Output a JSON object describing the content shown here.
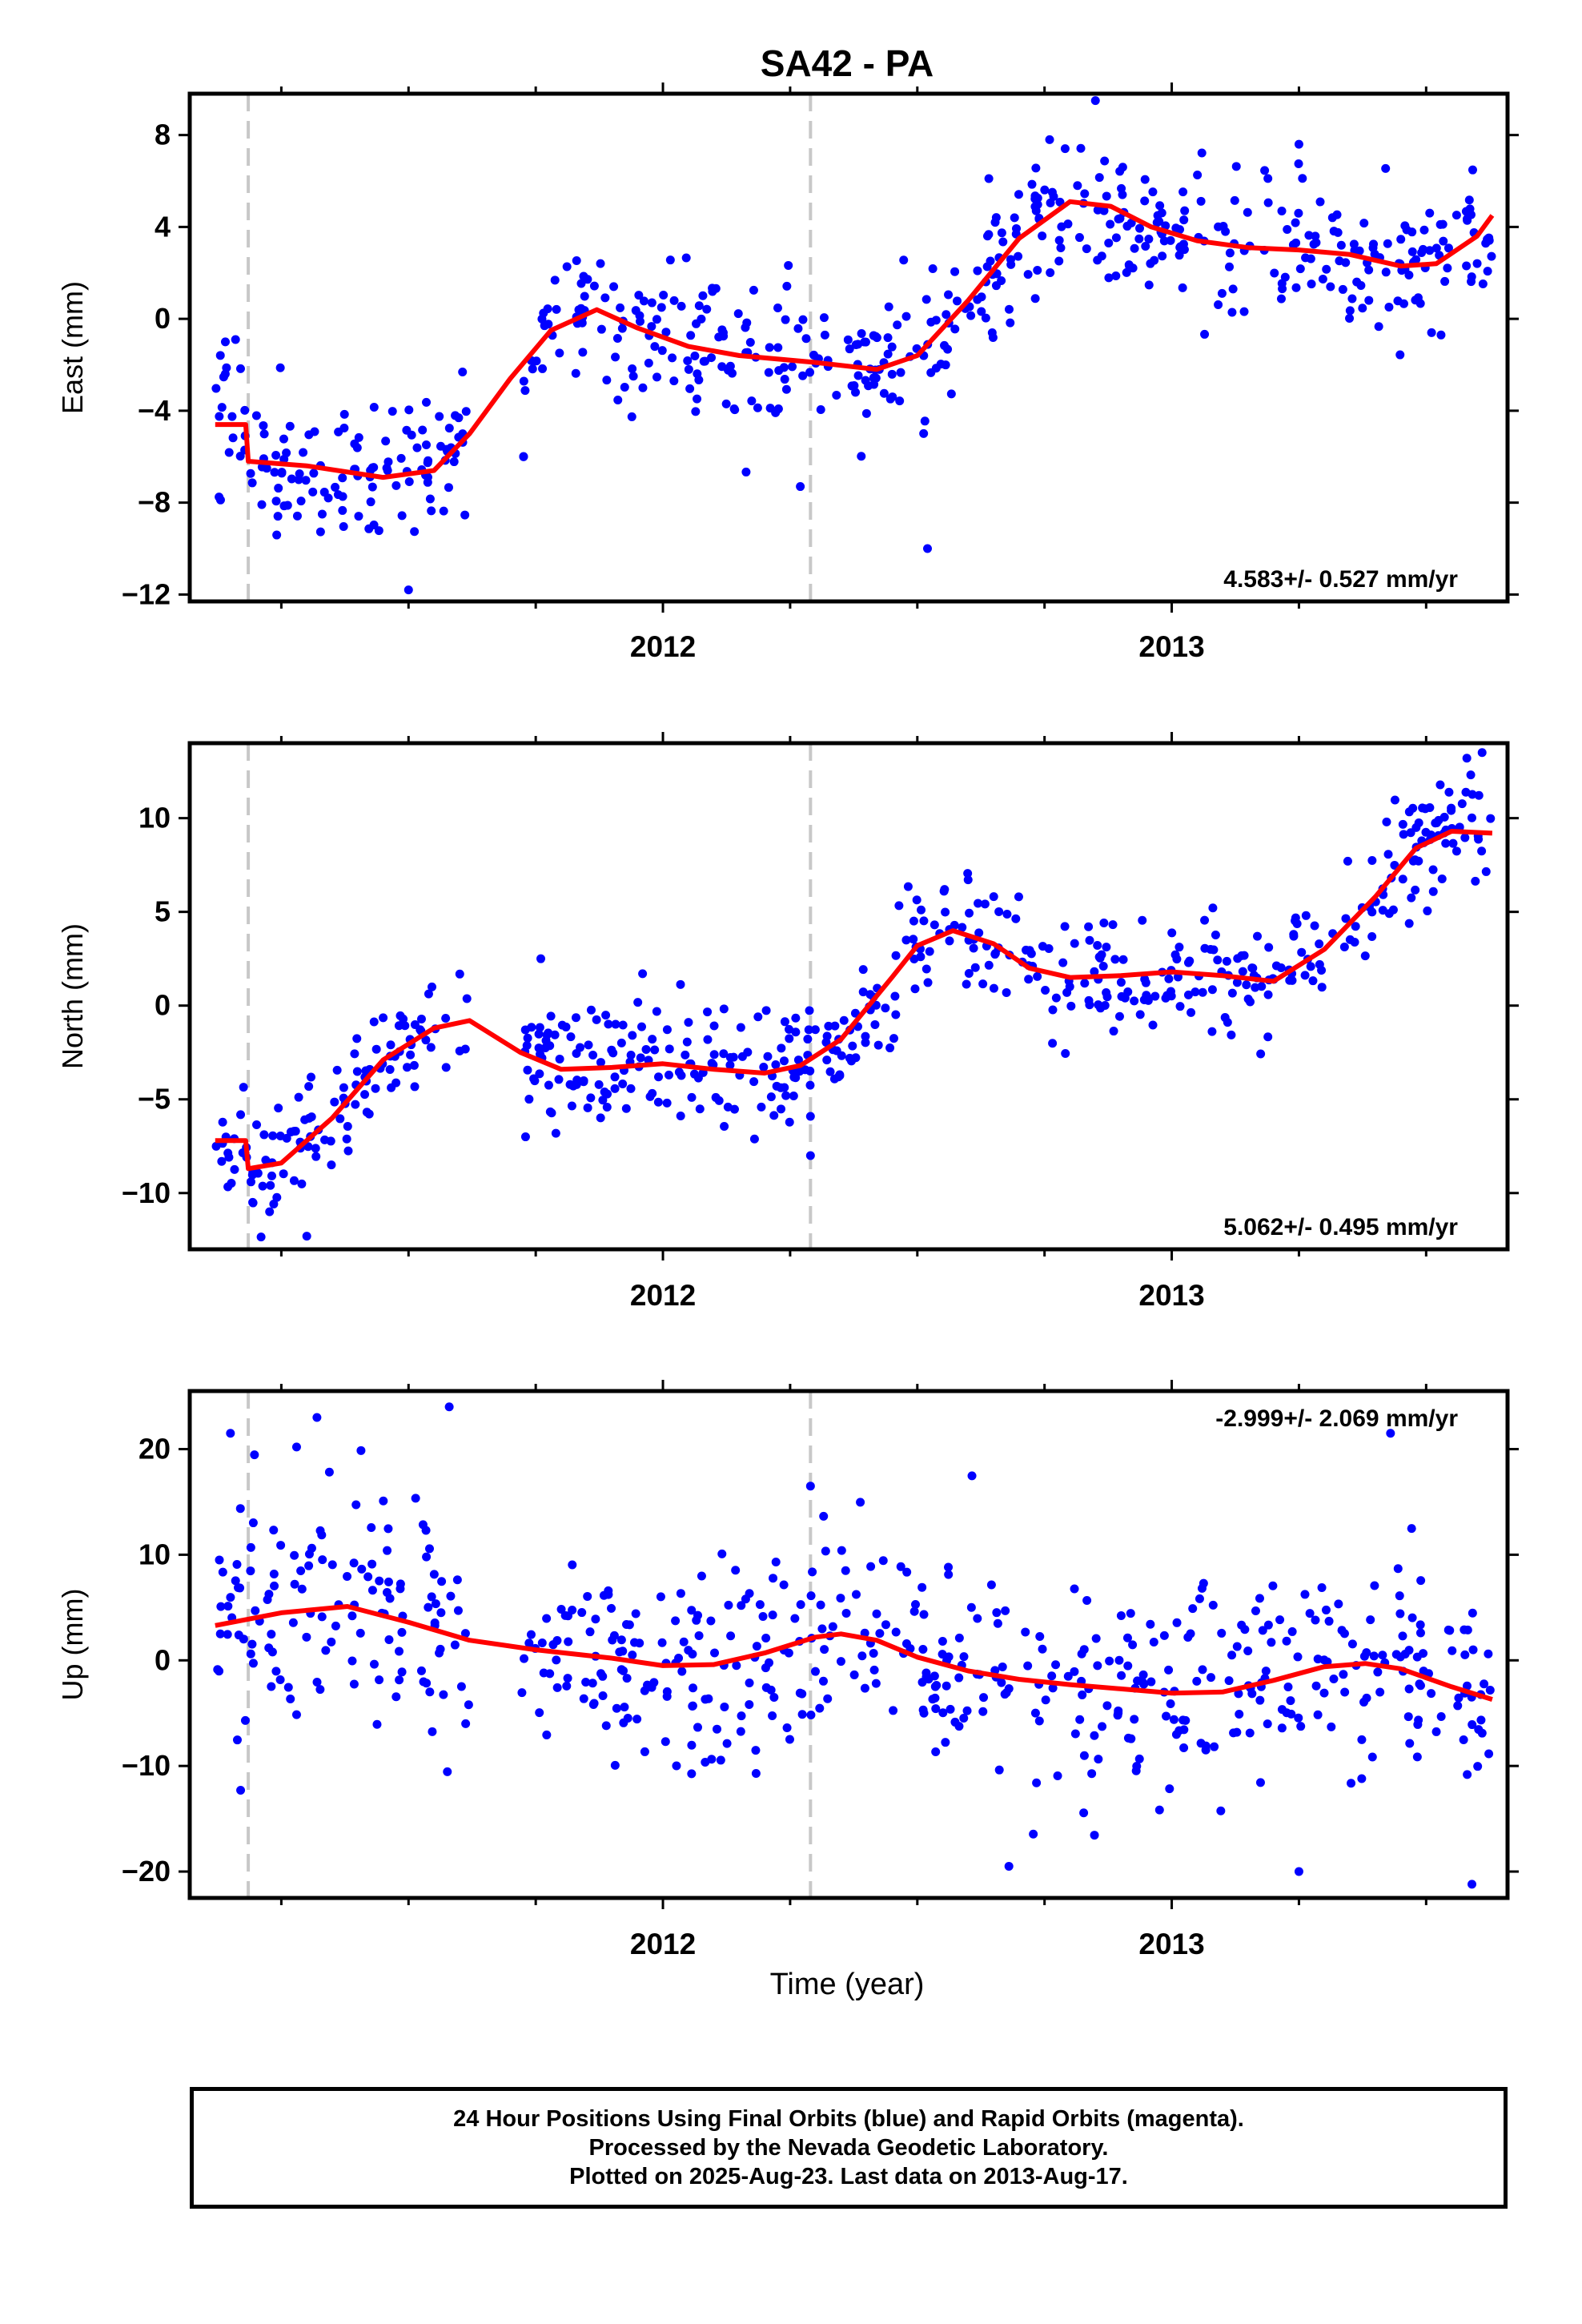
{
  "title": "SA42 - PA",
  "xlabel": "Time (year)",
  "footer": {
    "line1": "24 Hour Positions Using Final Orbits (blue) and Rapid Orbits (magenta).",
    "line2": "Processed by the Nevada Geodetic Laboratory.",
    "line3": "Plotted on 2025-Aug-23. Last data on 2013-Aug-17."
  },
  "colors": {
    "points": "#0000ff",
    "fit": "#ff0000",
    "event_lines": "#c8c8c8",
    "frame": "#000000"
  },
  "chart_data": [
    {
      "type": "scatter",
      "name": "east",
      "ylabel": "East (mm)",
      "rate_label": "4.583+/- 0.527 mm/yr",
      "rate_position": "bottom-right",
      "xlim": [
        2011.07,
        2013.66
      ],
      "ylim": [
        -12.3,
        9.8
      ],
      "yticks": [
        -12,
        -8,
        -4,
        0,
        4,
        8
      ],
      "yticklabels": [
        "−12",
        "−8",
        "−4",
        "0",
        "4",
        "8"
      ],
      "xticks": [
        2012,
        2013
      ],
      "xticklabels": [
        "2012",
        "2013"
      ],
      "event_lines": [
        2011.185,
        2012.29
      ],
      "data_range": [
        2011.12,
        2013.63
      ],
      "gaps": [
        [
          2011.62,
          2011.72
        ]
      ],
      "fit": {
        "x": [
          2011.12,
          2011.18,
          2011.185,
          2011.3,
          2011.45,
          2011.55,
          2011.62,
          2011.7,
          2011.78,
          2011.87,
          2011.95,
          2012.05,
          2012.15,
          2012.3,
          2012.42,
          2012.5,
          2012.6,
          2012.7,
          2012.8,
          2012.88,
          2012.96,
          2013.05,
          2013.15,
          2013.25,
          2013.35,
          2013.45,
          2013.52,
          2013.6,
          2013.63
        ],
        "y": [
          -4.6,
          -4.6,
          -6.2,
          -6.4,
          -6.9,
          -6.6,
          -5.0,
          -2.6,
          -0.5,
          0.4,
          -0.4,
          -1.2,
          -1.6,
          -1.9,
          -2.2,
          -1.6,
          0.8,
          3.5,
          5.1,
          4.9,
          4.0,
          3.4,
          3.1,
          3.0,
          2.8,
          2.3,
          2.4,
          3.6,
          4.5
        ]
      },
      "scatter": 1.55,
      "outliers": [
        [
          2011.14,
          -1.0
        ],
        [
          2011.16,
          -0.9
        ],
        [
          2011.5,
          -11.8
        ],
        [
          2012.52,
          -10.0
        ],
        [
          2012.27,
          -7.3
        ],
        [
          2012.85,
          9.5
        ],
        [
          2012.76,
          7.8
        ],
        [
          2013.25,
          7.6
        ]
      ]
    },
    {
      "type": "scatter",
      "name": "north",
      "ylabel": "North (mm)",
      "rate_label": "5.062+/- 0.495 mm/yr",
      "rate_position": "bottom-right",
      "xlim": [
        2011.07,
        2013.66
      ],
      "ylim": [
        -13.0,
        14.0
      ],
      "yticks": [
        -10,
        -5,
        0,
        5,
        10
      ],
      "yticklabels": [
        "−10",
        "−5",
        "0",
        "5",
        "10"
      ],
      "xticks": [
        2012,
        2013
      ],
      "xticklabels": [
        "2012",
        "2013"
      ],
      "event_lines": [
        2011.185,
        2012.29
      ],
      "data_range": [
        2011.12,
        2013.63
      ],
      "gaps": [
        [
          2011.62,
          2011.72
        ]
      ],
      "fit": {
        "x": [
          2011.12,
          2011.18,
          2011.185,
          2011.25,
          2011.35,
          2011.45,
          2011.55,
          2011.62,
          2011.72,
          2011.8,
          2011.9,
          2012.0,
          2012.1,
          2012.2,
          2012.27,
          2012.35,
          2012.45,
          2012.5,
          2012.57,
          2012.65,
          2012.72,
          2012.8,
          2012.9,
          2013.0,
          2013.1,
          2013.2,
          2013.3,
          2013.4,
          2013.48,
          2013.55,
          2013.63
        ],
        "y": [
          -7.2,
          -7.2,
          -8.7,
          -8.4,
          -6.0,
          -2.9,
          -1.2,
          -0.8,
          -2.5,
          -3.4,
          -3.3,
          -3.1,
          -3.4,
          -3.6,
          -3.2,
          -1.8,
          1.5,
          3.2,
          4.0,
          3.3,
          2.0,
          1.5,
          1.6,
          1.8,
          1.6,
          1.3,
          3.0,
          5.8,
          8.4,
          9.3,
          9.2
        ]
      },
      "scatter": 1.55,
      "outliers": [
        [
          2011.3,
          -12.3
        ],
        [
          2011.76,
          2.5
        ],
        [
          2011.96,
          1.7
        ],
        [
          2013.61,
          13.5
        ],
        [
          2013.58,
          13.2
        ],
        [
          2012.29,
          -8.0
        ],
        [
          2011.73,
          -7.0
        ]
      ]
    },
    {
      "type": "scatter",
      "name": "up",
      "ylabel": "Up (mm)",
      "rate_label": "-2.999+/- 2.069 mm/yr",
      "rate_position": "top-right",
      "xlim": [
        2011.07,
        2013.66
      ],
      "ylim": [
        -22.5,
        25.5
      ],
      "yticks": [
        -20,
        -10,
        0,
        10,
        20
      ],
      "yticklabels": [
        "−20",
        "−10",
        "0",
        "10",
        "20"
      ],
      "xticks": [
        2012,
        2013
      ],
      "xticklabels": [
        "2012",
        "2013"
      ],
      "event_lines": [
        2011.185,
        2012.29
      ],
      "data_range": [
        2011.12,
        2013.63
      ],
      "gaps": [
        [
          2011.62,
          2011.72
        ]
      ],
      "fit": {
        "x": [
          2011.12,
          2011.25,
          2011.38,
          2011.5,
          2011.62,
          2011.75,
          2011.9,
          2012.0,
          2012.1,
          2012.2,
          2012.3,
          2012.35,
          2012.42,
          2012.5,
          2012.6,
          2012.7,
          2012.8,
          2012.9,
          2013.0,
          2013.1,
          2013.2,
          2013.3,
          2013.38,
          2013.45,
          2013.55,
          2013.63
        ],
        "y": [
          3.3,
          4.5,
          5.1,
          3.6,
          1.9,
          1.0,
          0.2,
          -0.5,
          -0.4,
          0.7,
          2.2,
          2.5,
          1.9,
          0.3,
          -1.0,
          -1.8,
          -2.3,
          -2.7,
          -3.1,
          -3.0,
          -1.9,
          -0.6,
          -0.3,
          -0.8,
          -2.5,
          -3.7
        ]
      },
      "scatter": 5.2,
      "outliers": [
        [
          2011.15,
          21.5
        ],
        [
          2011.32,
          23.0
        ],
        [
          2011.58,
          24.0
        ],
        [
          2012.29,
          16.5
        ],
        [
          2013.43,
          21.5
        ],
        [
          2012.68,
          -19.5
        ],
        [
          2013.25,
          -20.0
        ],
        [
          2013.59,
          -21.2
        ],
        [
          2011.17,
          -12.3
        ],
        [
          2011.28,
          20.2
        ]
      ]
    }
  ]
}
